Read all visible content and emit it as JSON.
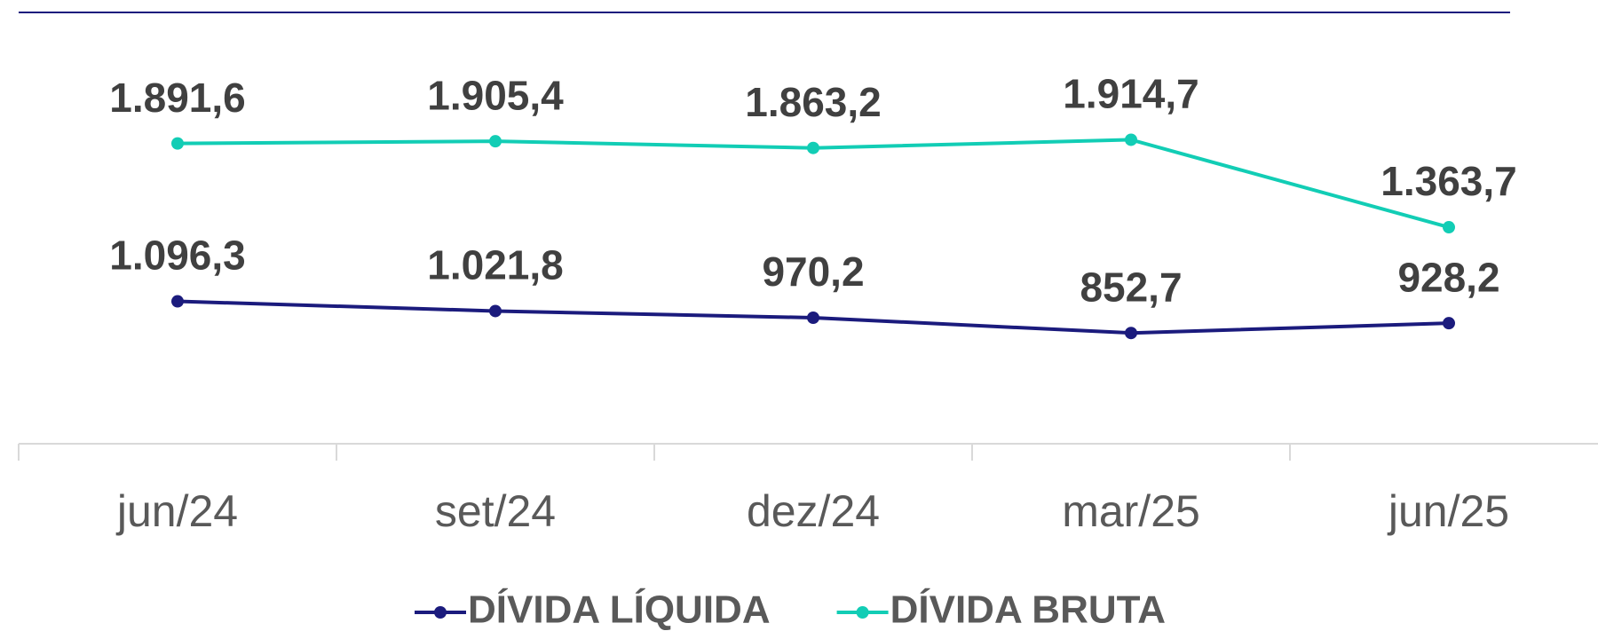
{
  "chart_data": {
    "type": "line",
    "categories": [
      "jun/24",
      "set/24",
      "dez/24",
      "mar/25",
      "jun/25"
    ],
    "series": [
      {
        "name": "DÍVIDA LÍQUIDA",
        "color": "#1b1b7d",
        "axis": "y2",
        "values": [
          1096.3,
          1021.8,
          970.2,
          852.7,
          928.2
        ],
        "value_labels": [
          "1.096,3",
          "1.021,8",
          "970,2",
          "852,7",
          "928,2"
        ]
      },
      {
        "name": "DÍVIDA BRUTA",
        "color": "#12cdb5",
        "values": [
          1891.6,
          1905.4,
          1863.2,
          1914.7,
          1363.7
        ],
        "value_labels": [
          "1.891,6",
          "1.905,4",
          "1.863,2",
          "1.914,7",
          "1.363,7"
        ]
      }
    ],
    "ylim": [
      0,
      2700
    ],
    "y2lim": [
      0,
      3300
    ]
  }
}
